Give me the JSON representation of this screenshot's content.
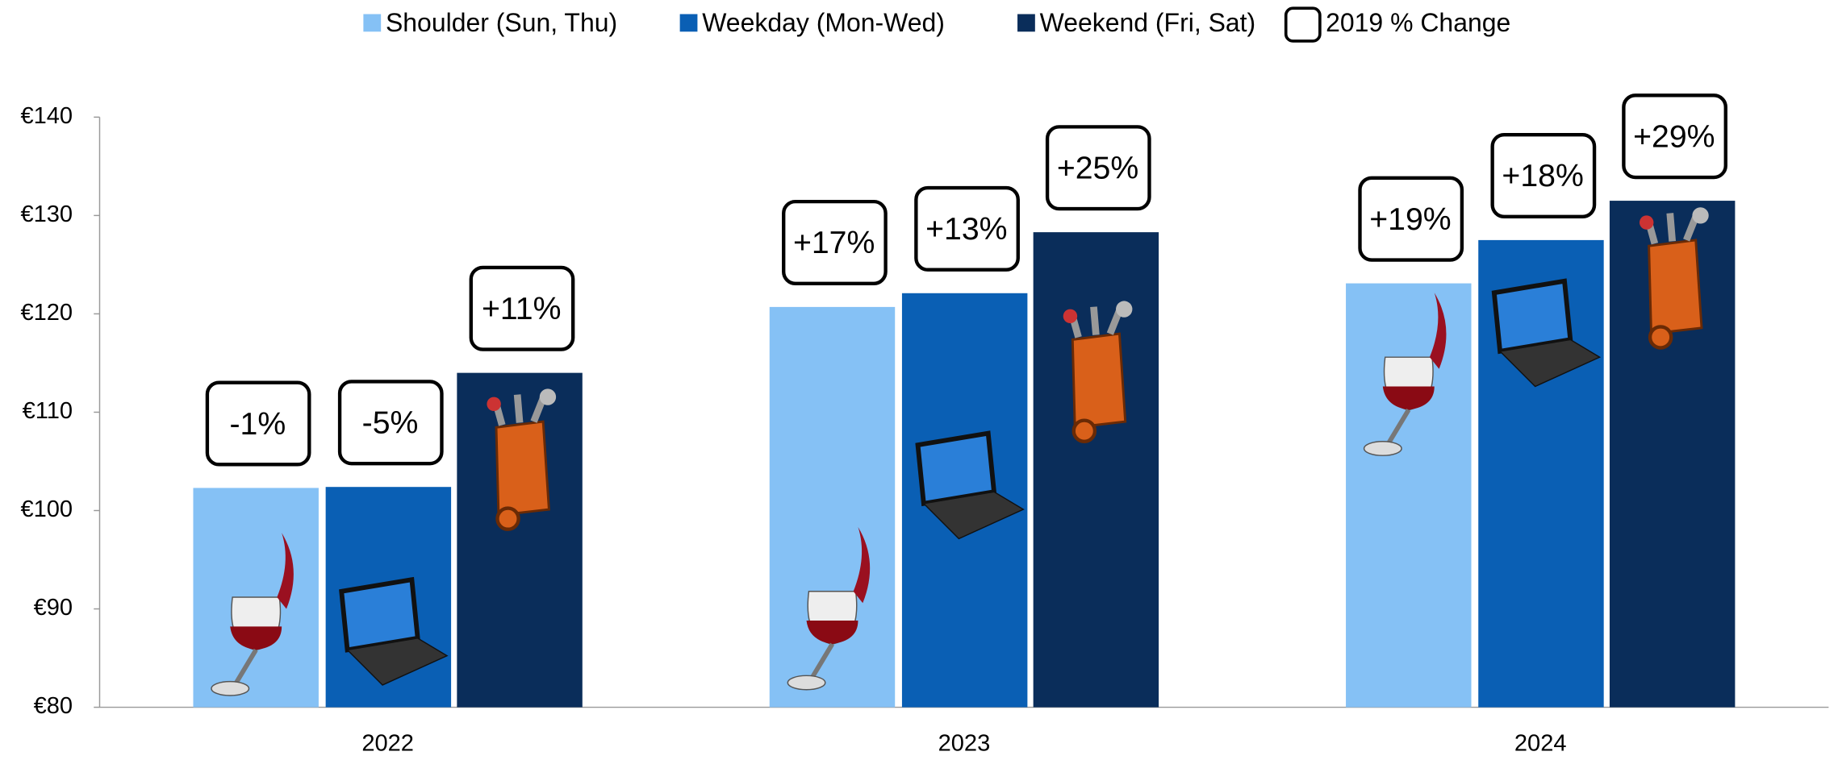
{
  "chart_data": {
    "type": "bar",
    "categories": [
      "2022",
      "2023",
      "2024"
    ],
    "series": [
      {
        "name": "Shoulder (Sun, Thu)",
        "color": "#85c1f5",
        "values": [
          102.3,
          120.7,
          123.1
        ],
        "changes": [
          -1,
          17,
          19
        ],
        "change_labels": [
          "-1%",
          "+17%",
          "+19%"
        ]
      },
      {
        "name": "Weekday (Mon-Wed)",
        "color": "#0a5fb4",
        "values": [
          102.4,
          122.1,
          127.5
        ],
        "changes": [
          -5,
          13,
          18
        ],
        "change_labels": [
          "-5%",
          "+13%",
          "+18%"
        ]
      },
      {
        "name": "Weekend (Fri, Sat)",
        "color": "#0a2d5a",
        "values": [
          114.0,
          128.3,
          131.5
        ],
        "changes": [
          11,
          25,
          29
        ],
        "change_labels": [
          "+11%",
          "+25%",
          "+29%"
        ]
      }
    ],
    "change_legend": "2019 % Change",
    "ylim": [
      80,
      140
    ],
    "yticks": [
      {
        "value": 80,
        "label": "€80"
      },
      {
        "value": 90,
        "label": "€90"
      },
      {
        "value": 100,
        "label": "€100"
      },
      {
        "value": 110,
        "label": "€110"
      },
      {
        "value": 120,
        "label": "€120"
      },
      {
        "value": 130,
        "label": "€130"
      },
      {
        "value": 140,
        "label": "€140"
      }
    ],
    "grid": false
  }
}
